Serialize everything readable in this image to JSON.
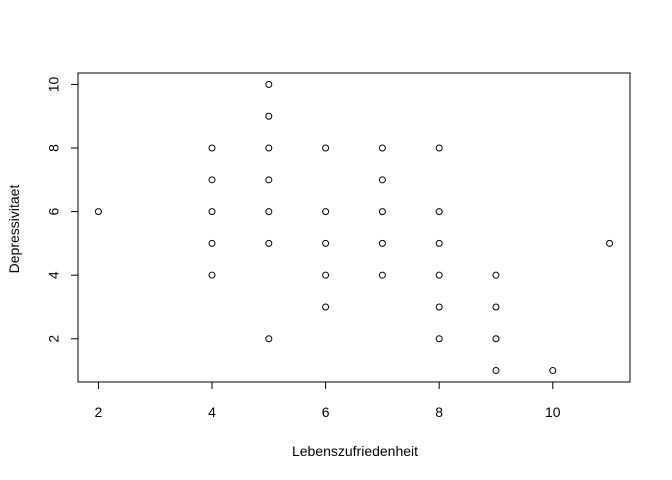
{
  "chart_data": {
    "type": "scatter",
    "title": "",
    "xlabel": "Lebenszufriedenheit",
    "ylabel": "Depressivitaet",
    "xlim": [
      1.64,
      11.36
    ],
    "ylim": [
      0.64,
      10.36
    ],
    "xticks": [
      2,
      4,
      6,
      8,
      10
    ],
    "yticks": [
      2,
      4,
      6,
      8,
      10
    ],
    "grid": false,
    "legend": "none",
    "marker": "open-circle",
    "points": [
      {
        "x": 2,
        "y": 6
      },
      {
        "x": 4,
        "y": 4
      },
      {
        "x": 4,
        "y": 5
      },
      {
        "x": 4,
        "y": 6
      },
      {
        "x": 4,
        "y": 7
      },
      {
        "x": 4,
        "y": 8
      },
      {
        "x": 5,
        "y": 2
      },
      {
        "x": 5,
        "y": 5
      },
      {
        "x": 5,
        "y": 6
      },
      {
        "x": 5,
        "y": 7
      },
      {
        "x": 5,
        "y": 8
      },
      {
        "x": 5,
        "y": 9
      },
      {
        "x": 5,
        "y": 10
      },
      {
        "x": 6,
        "y": 3
      },
      {
        "x": 6,
        "y": 4
      },
      {
        "x": 6,
        "y": 5
      },
      {
        "x": 6,
        "y": 6
      },
      {
        "x": 6,
        "y": 8
      },
      {
        "x": 7,
        "y": 4
      },
      {
        "x": 7,
        "y": 5
      },
      {
        "x": 7,
        "y": 6
      },
      {
        "x": 7,
        "y": 7
      },
      {
        "x": 7,
        "y": 8
      },
      {
        "x": 8,
        "y": 2
      },
      {
        "x": 8,
        "y": 3
      },
      {
        "x": 8,
        "y": 4
      },
      {
        "x": 8,
        "y": 5
      },
      {
        "x": 8,
        "y": 6
      },
      {
        "x": 8,
        "y": 8
      },
      {
        "x": 9,
        "y": 1
      },
      {
        "x": 9,
        "y": 2
      },
      {
        "x": 9,
        "y": 3
      },
      {
        "x": 9,
        "y": 4
      },
      {
        "x": 10,
        "y": 1
      },
      {
        "x": 11,
        "y": 5
      }
    ]
  }
}
